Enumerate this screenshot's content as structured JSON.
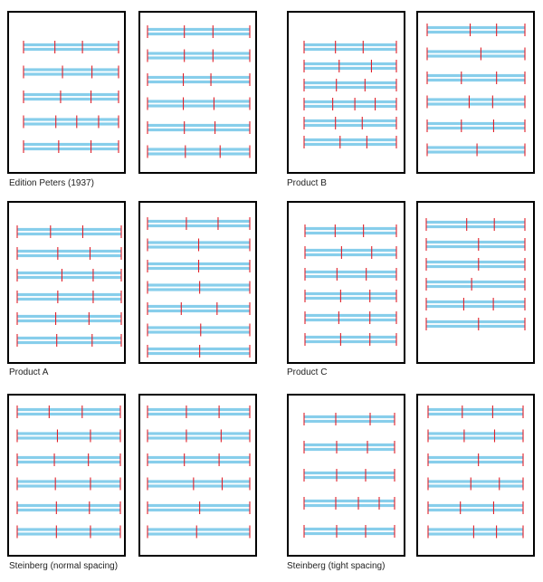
{
  "captions": [
    "Edition Peters (1937)",
    "Product B",
    "Product A",
    "Product C",
    "Steinberg (normal spacing)",
    "Steinberg (tight spacing)"
  ],
  "colors": {
    "staff": "#87CEEB",
    "barline": "#E0202A",
    "frame": "#000000",
    "page": "#FFFFFF"
  },
  "groups": [
    {
      "caption_index": 0,
      "pages": [
        {
          "systems": [
            [
              0.33,
              0.62
            ],
            [
              0.41,
              0.72
            ],
            [
              0.39,
              0.71
            ],
            [
              0.34,
              0.56,
              0.79
            ],
            [
              0.37,
              0.71
            ]
          ]
        },
        {
          "systems": [
            [
              0.36,
              0.64
            ],
            [
              0.36,
              0.64
            ],
            [
              0.35,
              0.62
            ],
            [
              0.35,
              0.65
            ],
            [
              0.36,
              0.66
            ],
            [
              0.37,
              0.71
            ]
          ]
        }
      ]
    },
    {
      "caption_index": 1,
      "pages": [
        {
          "systems": [
            [
              0.34,
              0.64
            ],
            [
              0.38,
              0.73
            ],
            [
              0.35,
              0.66
            ],
            [
              0.31,
              0.55,
              0.77
            ],
            [
              0.34,
              0.63
            ],
            [
              0.39,
              0.68
            ]
          ]
        },
        {
          "systems": [
            [
              0.44,
              0.71
            ],
            [
              0.55
            ],
            [
              0.35,
              0.71
            ],
            [
              0.43,
              0.67
            ],
            [
              0.35,
              0.68
            ],
            [
              0.51
            ]
          ]
        }
      ]
    },
    {
      "caption_index": 2,
      "pages": [
        {
          "systems": [
            [
              0.32,
              0.63
            ],
            [
              0.39,
              0.7
            ],
            [
              0.43,
              0.73
            ],
            [
              0.39,
              0.73
            ],
            [
              0.37,
              0.69
            ],
            [
              0.38,
              0.72
            ]
          ]
        },
        {
          "systems": [
            [
              0.38,
              0.69
            ],
            [
              0.5
            ],
            [
              0.5
            ],
            [
              0.51
            ],
            [
              0.33,
              0.68
            ],
            [
              0.52
            ],
            [
              0.51
            ]
          ]
        }
      ]
    },
    {
      "caption_index": 3,
      "pages": [
        {
          "systems": [
            [
              0.33,
              0.64
            ],
            [
              0.4,
              0.73
            ],
            [
              0.35,
              0.67
            ],
            [
              0.39,
              0.71
            ],
            [
              0.37,
              0.71
            ],
            [
              0.39,
              0.71
            ]
          ]
        },
        {
          "systems": [
            [
              0.41,
              0.69
            ],
            [
              0.53
            ],
            [
              0.53
            ],
            [
              0.46
            ],
            [
              0.38,
              0.68
            ],
            [
              0.53
            ]
          ]
        }
      ]
    },
    {
      "caption_index": 4,
      "pages": [
        {
          "systems": [
            [
              0.31,
              0.63
            ],
            [
              0.39,
              0.71
            ],
            [
              0.36,
              0.69
            ],
            [
              0.37,
              0.71
            ],
            [
              0.38,
              0.7
            ],
            [
              0.38,
              0.71
            ]
          ]
        },
        {
          "systems": [
            [
              0.38,
              0.7
            ],
            [
              0.38,
              0.72
            ],
            [
              0.36,
              0.7
            ],
            [
              0.45,
              0.73
            ],
            [
              0.51
            ],
            [
              0.48
            ]
          ]
        }
      ]
    },
    {
      "caption_index": 5,
      "pages": [
        {
          "systems": [
            [
              0.35,
              0.73
            ],
            [
              0.36,
              0.7
            ],
            [
              0.36,
              0.68
            ],
            [
              0.35,
              0.6,
              0.83
            ],
            [
              0.36,
              0.68
            ]
          ]
        },
        {
          "systems": [
            [
              0.36,
              0.68
            ],
            [
              0.38,
              0.7
            ],
            [
              0.53
            ],
            [
              0.45,
              0.75
            ],
            [
              0.34,
              0.69
            ],
            [
              0.48,
              0.72
            ]
          ]
        }
      ]
    }
  ]
}
